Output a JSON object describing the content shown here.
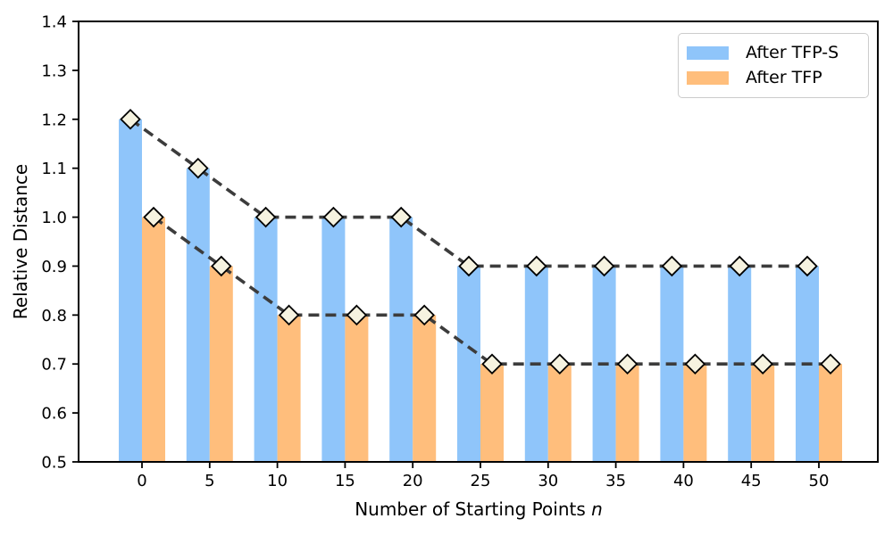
{
  "chart_data": {
    "type": "bar",
    "xlabel_text": "Number of Starting Points ",
    "xlabel_var": "n",
    "ylabel": "Relative Distance",
    "categories": [
      0,
      5,
      10,
      15,
      20,
      25,
      30,
      35,
      40,
      45,
      50
    ],
    "x_tick_labels": [
      "0",
      "5",
      "10",
      "15",
      "20",
      "25",
      "30",
      "35",
      "40",
      "45",
      "50"
    ],
    "series": [
      {
        "name": "After TFP-S",
        "color": "#8FC5FA",
        "values": [
          1.2,
          1.1,
          1.0,
          1.0,
          1.0,
          0.9,
          0.9,
          0.9,
          0.9,
          0.9,
          0.9
        ]
      },
      {
        "name": "After TFP",
        "color": "#FFBE7C",
        "values": [
          1.0,
          0.9,
          0.8,
          0.8,
          0.8,
          0.7,
          0.7,
          0.7,
          0.7,
          0.7,
          0.7
        ]
      }
    ],
    "y_tick_labels": [
      "0.5",
      "0.6",
      "0.7",
      "0.8",
      "0.9",
      "1.0",
      "1.1",
      "1.2",
      "1.3",
      "1.4"
    ],
    "ylim": [
      0.5,
      1.4
    ],
    "bar_baseline": 0.5,
    "marker": {
      "shape": "diamond",
      "fill": "#F6F3E0",
      "edge": "#000000"
    },
    "line": {
      "color": "#3C3C3C",
      "style": "dashed"
    },
    "legend_position": "top-right",
    "grid": false,
    "axis_color": "#000000"
  }
}
